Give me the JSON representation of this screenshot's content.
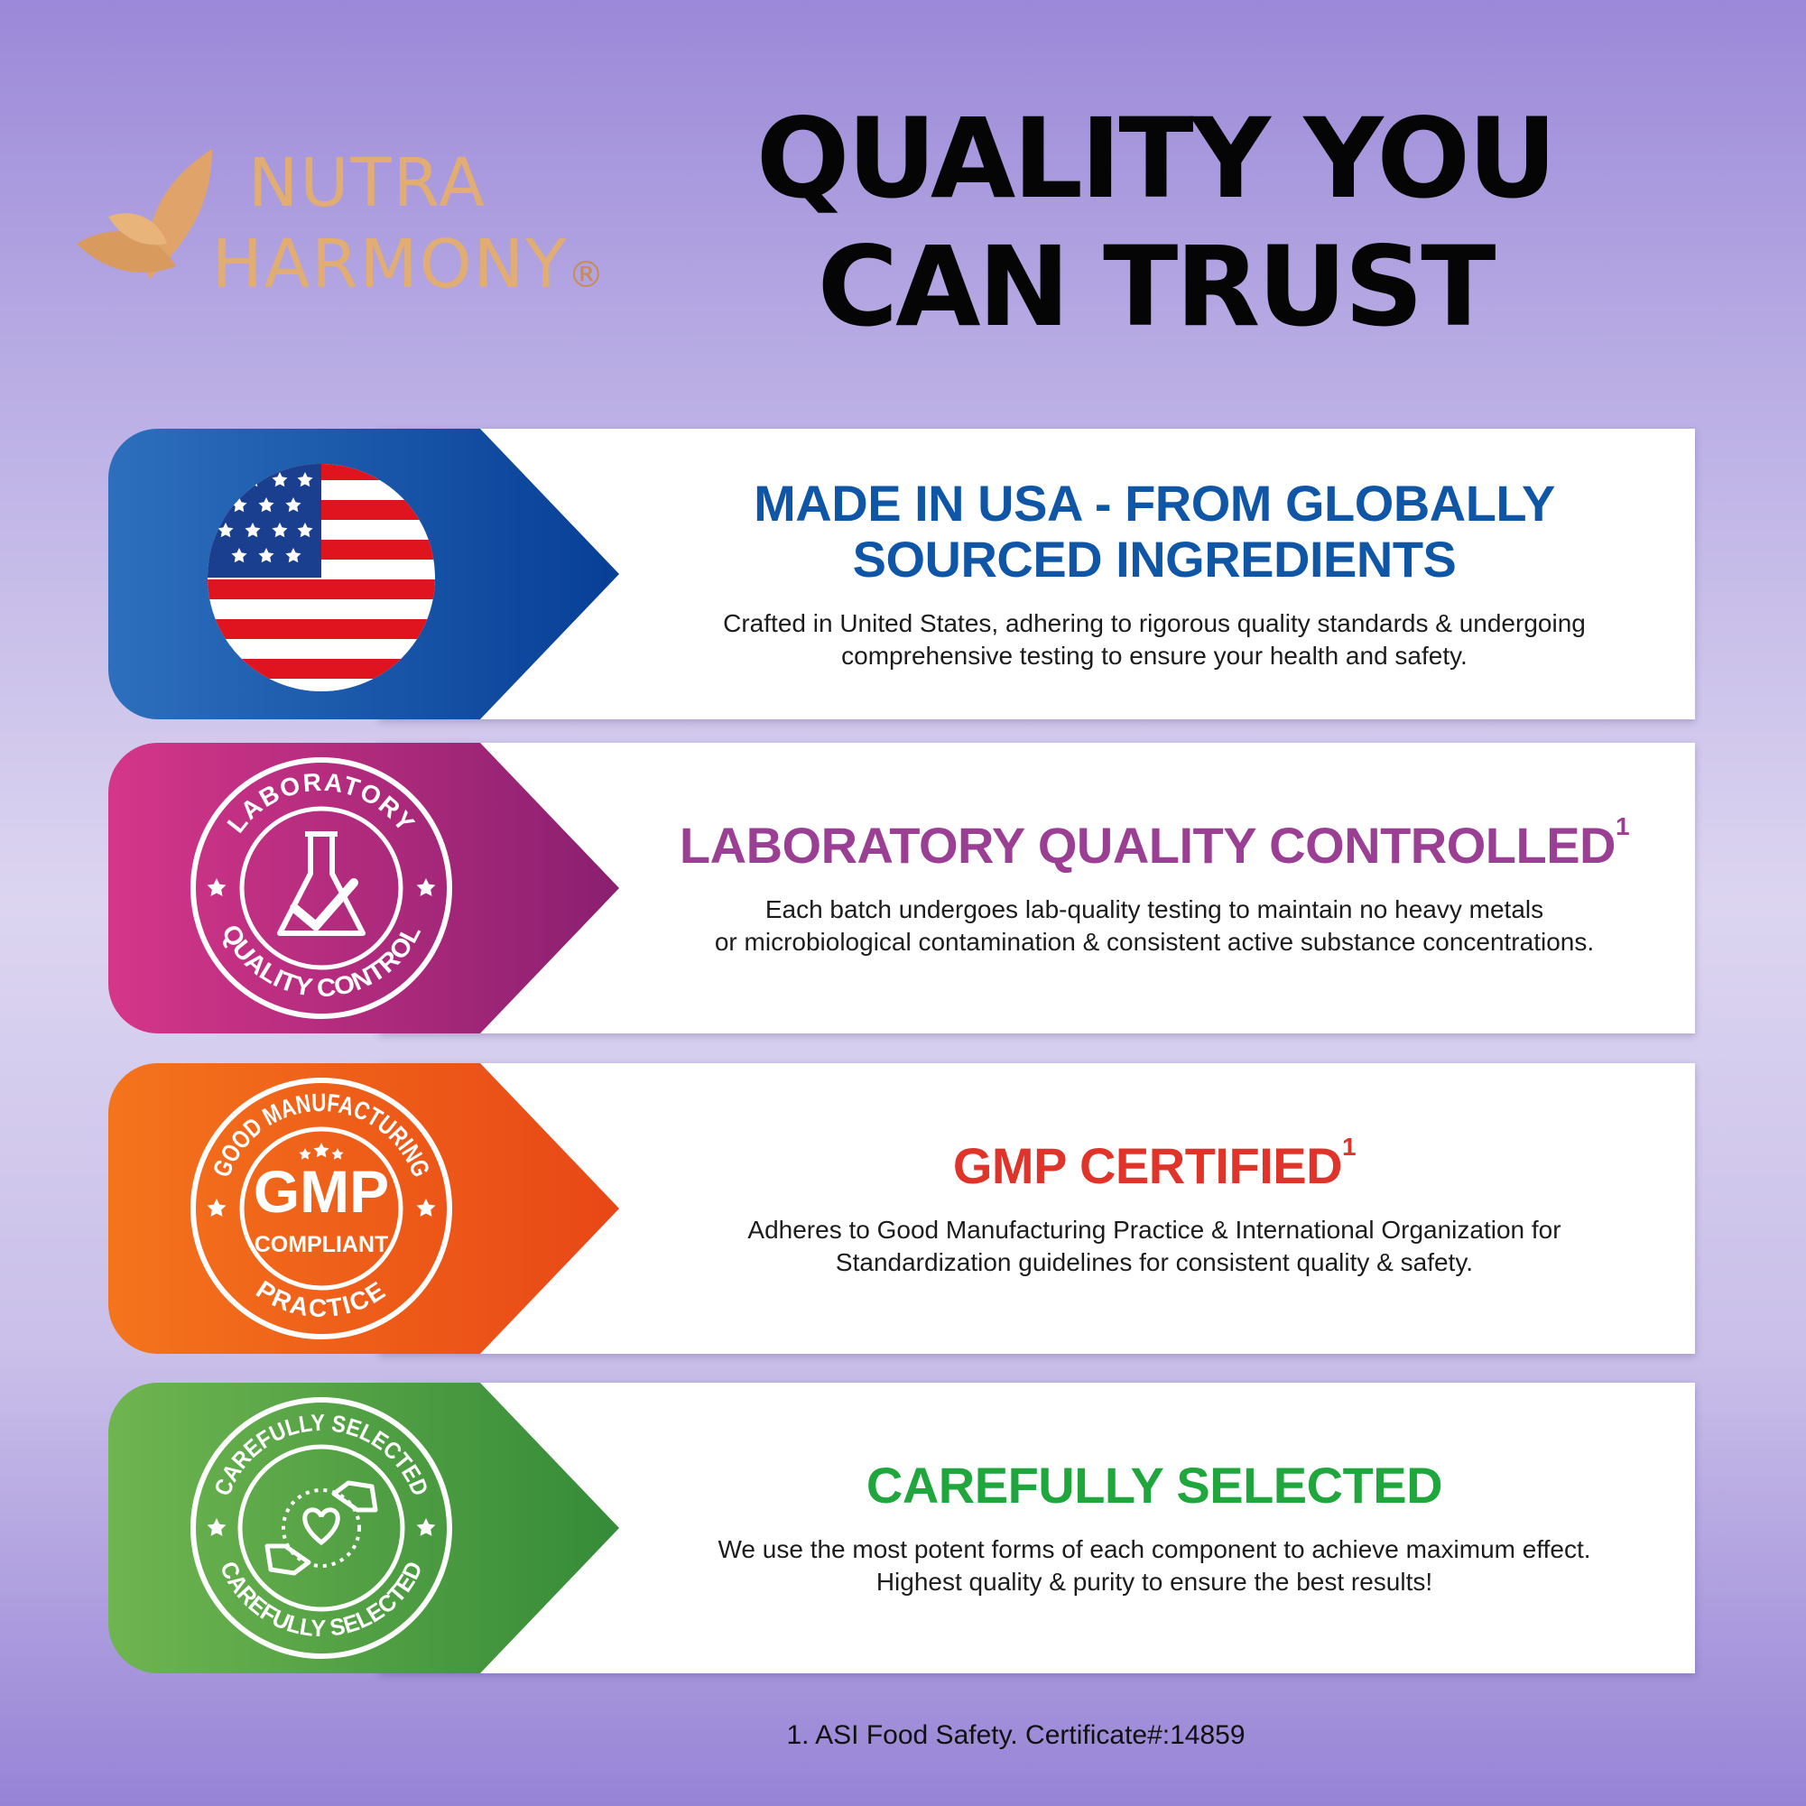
{
  "brand": {
    "name_line1": "NUTRA",
    "name_line2": "HARMONY",
    "registered": "®"
  },
  "headline": {
    "line1": "QUALITY YOU",
    "line2": "CAN TRUST"
  },
  "features": [
    {
      "title": "MADE IN USA - FROM GLOBALLY SOURCED INGREDIENTS",
      "title_line1": "MADE IN USA - FROM GLOBALLY",
      "title_line2": "SOURCED INGREDIENTS",
      "superscript": "",
      "body_line1": "Crafted in United States, adhering to rigorous quality standards & undergoing",
      "body_line2": "comprehensive testing to ensure your health and safety.",
      "icon": "us-flag-icon",
      "color": "#0f56a6"
    },
    {
      "title": "LABORATORY QUALITY CONTROLLED",
      "superscript": "1",
      "body_line1": "Each batch undergoes lab-quality testing to maintain no heavy metals",
      "body_line2": "or microbiological contamination & consistent active substance concentrations.",
      "icon": "lab-flask-check-icon",
      "seal_top": "LABORATORY",
      "seal_bottom": "QUALITY CONTROL",
      "color": "#9b3f95"
    },
    {
      "title": "GMP CERTIFIED",
      "superscript": "1",
      "body_line1": "Adheres to Good Manufacturing Practice & International Organization for",
      "body_line2": "Standardization guidelines for consistent quality & safety.",
      "icon": "gmp-seal-icon",
      "seal_top": "GOOD MANUFACTURING",
      "seal_bottom": "PRACTICE",
      "seal_center_1": "GMP",
      "seal_center_2": "COMPLIANT",
      "color": "#e0342a"
    },
    {
      "title": "CAREFULLY SELECTED",
      "superscript": "",
      "body_line1": "We use the most potent forms of each component to achieve maximum effect.",
      "body_line2": "Highest quality & purity to ensure the best results!",
      "icon": "hands-heart-icon",
      "seal_top": "CAREFULLY SELECTED",
      "seal_bottom": "CAREFULLY SELECTED",
      "color": "#1fa63c"
    }
  ],
  "footnote": "1. ASI Food Safety. Certificate#:14859"
}
